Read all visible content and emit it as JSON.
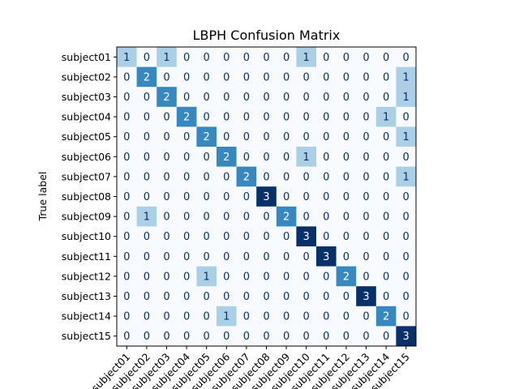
{
  "chart_data": {
    "type": "heatmap",
    "title": "LBPH Confusion Matrix",
    "ylabel": "True label",
    "xlabel": "",
    "colormap": "Blues",
    "color_low": "#f7fbff",
    "color_high": "#08306b",
    "categories": [
      "subject01",
      "subject02",
      "subject03",
      "subject04",
      "subject05",
      "subject06",
      "subject07",
      "subject08",
      "subject09",
      "subject10",
      "subject11",
      "subject12",
      "subject13",
      "subject14",
      "subject15"
    ],
    "values": [
      [
        1,
        0,
        1,
        0,
        0,
        0,
        0,
        0,
        0,
        1,
        0,
        0,
        0,
        0,
        0
      ],
      [
        0,
        2,
        0,
        0,
        0,
        0,
        0,
        0,
        0,
        0,
        0,
        0,
        0,
        0,
        1
      ],
      [
        0,
        0,
        2,
        0,
        0,
        0,
        0,
        0,
        0,
        0,
        0,
        0,
        0,
        0,
        1
      ],
      [
        0,
        0,
        0,
        2,
        0,
        0,
        0,
        0,
        0,
        0,
        0,
        0,
        0,
        1,
        0
      ],
      [
        0,
        0,
        0,
        0,
        2,
        0,
        0,
        0,
        0,
        0,
        0,
        0,
        0,
        0,
        1
      ],
      [
        0,
        0,
        0,
        0,
        0,
        2,
        0,
        0,
        0,
        1,
        0,
        0,
        0,
        0,
        0
      ],
      [
        0,
        0,
        0,
        0,
        0,
        0,
        2,
        0,
        0,
        0,
        0,
        0,
        0,
        0,
        1
      ],
      [
        0,
        0,
        0,
        0,
        0,
        0,
        0,
        3,
        0,
        0,
        0,
        0,
        0,
        0,
        0
      ],
      [
        0,
        1,
        0,
        0,
        0,
        0,
        0,
        0,
        2,
        0,
        0,
        0,
        0,
        0,
        0
      ],
      [
        0,
        0,
        0,
        0,
        0,
        0,
        0,
        0,
        0,
        3,
        0,
        0,
        0,
        0,
        0
      ],
      [
        0,
        0,
        0,
        0,
        0,
        0,
        0,
        0,
        0,
        0,
        3,
        0,
        0,
        0,
        0
      ],
      [
        0,
        0,
        0,
        0,
        1,
        0,
        0,
        0,
        0,
        0,
        0,
        2,
        0,
        0,
        0
      ],
      [
        0,
        0,
        0,
        0,
        0,
        0,
        0,
        0,
        0,
        0,
        0,
        0,
        3,
        0,
        0
      ],
      [
        0,
        0,
        0,
        0,
        0,
        1,
        0,
        0,
        0,
        0,
        0,
        0,
        0,
        2,
        0
      ],
      [
        0,
        0,
        0,
        0,
        0,
        0,
        0,
        0,
        0,
        0,
        0,
        0,
        0,
        0,
        3
      ]
    ],
    "vmin": 0,
    "vmax": 3
  }
}
